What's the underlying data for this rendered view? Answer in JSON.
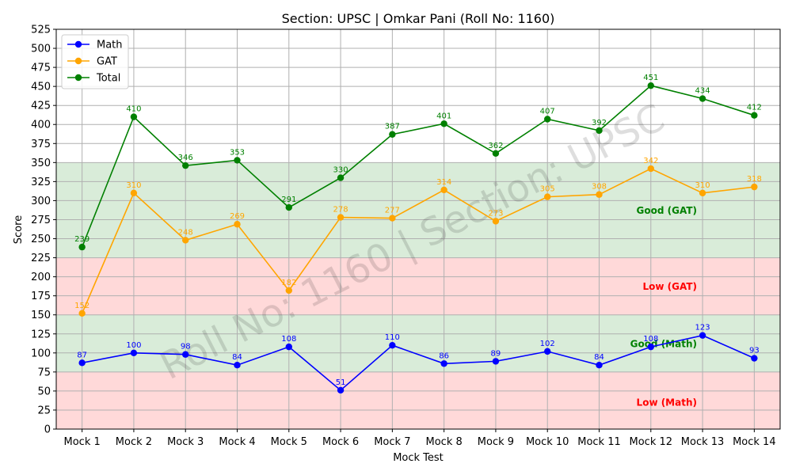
{
  "chart_data": {
    "type": "line",
    "title": "Section: UPSC | Omkar Pani (Roll No: 1160)",
    "xlabel": "Mock Test",
    "ylabel": "Score",
    "ylim": [
      0,
      525
    ],
    "y_ticks": [
      0,
      25,
      50,
      75,
      100,
      125,
      150,
      175,
      200,
      225,
      250,
      275,
      300,
      325,
      350,
      375,
      400,
      425,
      450,
      475,
      500,
      525
    ],
    "grid": true,
    "legend_position": "top-left",
    "categories": [
      "Mock 1",
      "Mock 2",
      "Mock 3",
      "Mock 4",
      "Mock 5",
      "Mock 6",
      "Mock 7",
      "Mock 8",
      "Mock 9",
      "Mock 10",
      "Mock 11",
      "Mock 12",
      "Mock 13",
      "Mock 14"
    ],
    "series": [
      {
        "name": "Math",
        "color": "#0000ff",
        "values": [
          87,
          100,
          98,
          84,
          108,
          51,
          110,
          86,
          89,
          102,
          84,
          108,
          123,
          93
        ]
      },
      {
        "name": "GAT",
        "color": "#ffa500",
        "values": [
          152,
          310,
          248,
          269,
          182,
          278,
          277,
          314,
          273,
          305,
          308,
          342,
          310,
          318
        ]
      },
      {
        "name": "Total",
        "color": "#008000",
        "values": [
          239,
          410,
          346,
          353,
          291,
          330,
          387,
          401,
          362,
          407,
          392,
          451,
          434,
          412
        ]
      }
    ],
    "bands": [
      {
        "label": "Low (Math)",
        "from": 0,
        "to": 75,
        "color": "#ff0000",
        "label_color": "#ff0000",
        "label_y": 35
      },
      {
        "label": "Good (Math)",
        "from": 75,
        "to": 150,
        "color": "#008000",
        "label_color": "#008000",
        "label_y": 112
      },
      {
        "label": "Low (GAT)",
        "from": 150,
        "to": 225,
        "color": "#ff0000",
        "label_color": "#ff0000",
        "label_y": 187
      },
      {
        "label": "Good (GAT)",
        "from": 225,
        "to": 350,
        "color": "#008000",
        "label_color": "#008000",
        "label_y": 287
      }
    ],
    "watermark": "Roll No: 1160 | Section: UPSC"
  }
}
